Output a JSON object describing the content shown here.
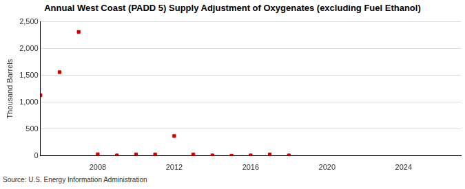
{
  "chart_data": {
    "type": "scatter",
    "title": "Annual West Coast (PADD 5) Supply Adjustment of Oxygenates (excluding Fuel Ethanol)",
    "y_label": "Thousand Barrels",
    "source": "Source: U.S. Energy Information Administration",
    "x": [
      2005,
      2006,
      2007,
      2008,
      2009,
      2010,
      2011,
      2012,
      2013,
      2014,
      2015,
      2016,
      2017,
      2018
    ],
    "values": [
      1130,
      1560,
      2310,
      30,
      10,
      25,
      25,
      370,
      25,
      10,
      5,
      10,
      25,
      10
    ],
    "color": "#cc0000",
    "marker": "square",
    "xlim": [
      2005,
      2027
    ],
    "xticks": [
      2008,
      2012,
      2016,
      2020,
      2024
    ],
    "ylim": [
      0,
      2500
    ],
    "yticks": [
      0,
      500,
      {
        "value": 1000,
        "label": "1,000"
      },
      {
        "value": 1500,
        "label": "1,500"
      },
      {
        "value": 2000,
        "label": "2,000"
      },
      {
        "value": 2500,
        "label": "2,500"
      }
    ],
    "grid": true
  }
}
